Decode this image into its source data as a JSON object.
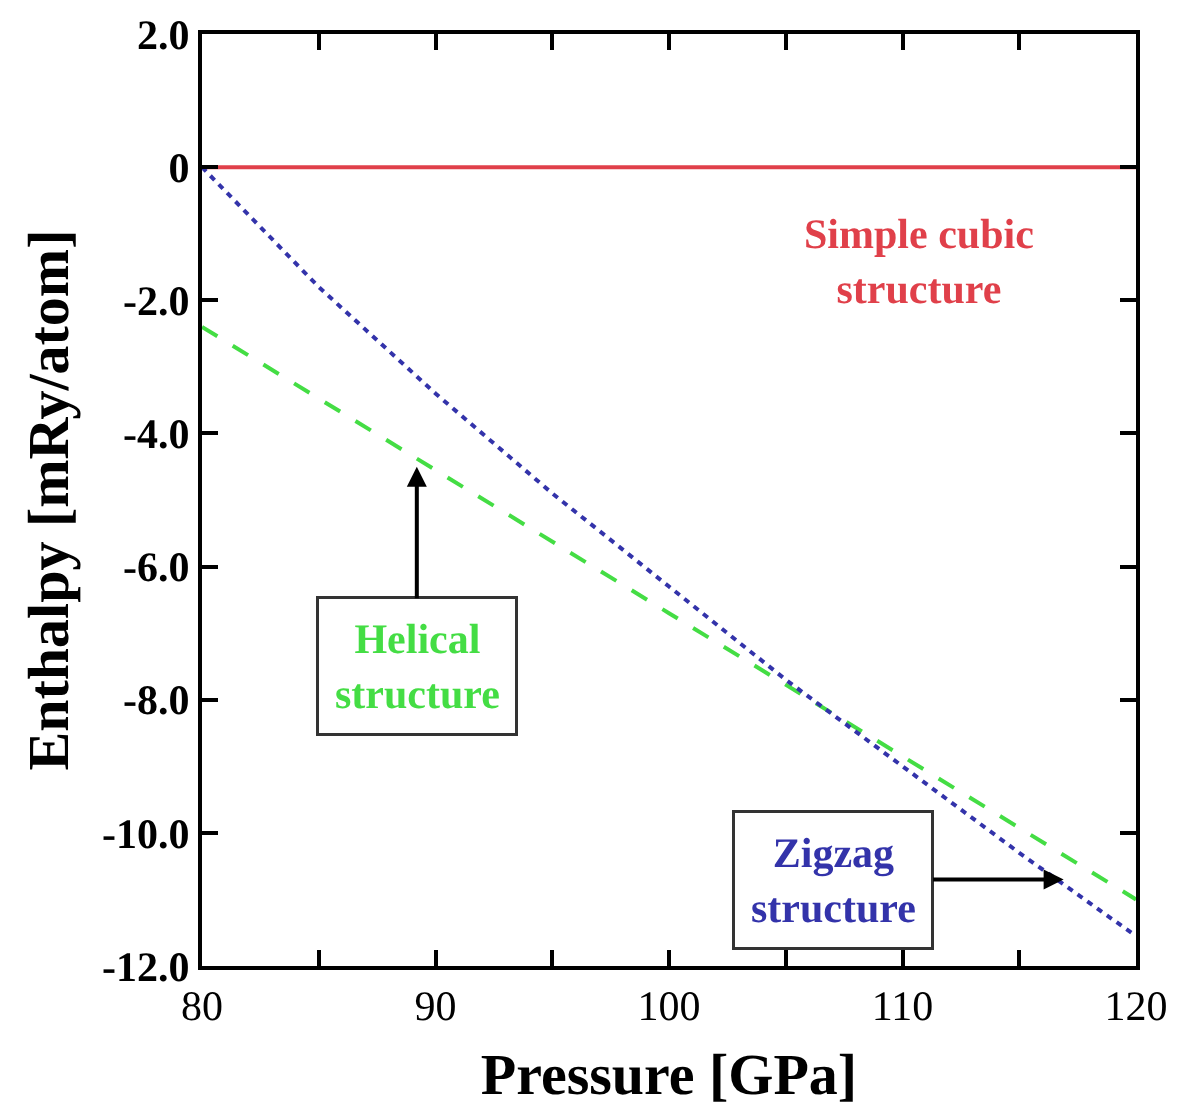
{
  "chart_data": {
    "type": "line",
    "xlabel": "Pressure [GPa]",
    "ylabel": "Enthalpy [mRy/atom]",
    "xlim": [
      80,
      120
    ],
    "ylim": [
      -12,
      2
    ],
    "xticks": [
      80,
      {
        "value": 85,
        "label": null
      },
      90,
      {
        "value": 95,
        "label": null
      },
      100,
      {
        "value": 105,
        "label": null
      },
      110,
      {
        "value": 115,
        "label": null
      },
      120
    ],
    "yticks": [
      {
        "value": -12,
        "label": "-12.0"
      },
      {
        "value": -10,
        "label": "-10.0"
      },
      {
        "value": -8,
        "label": "-8.0"
      },
      {
        "value": -6,
        "label": "-6.0"
      },
      {
        "value": -4,
        "label": "-4.0"
      },
      {
        "value": -2,
        "label": "-2.0"
      },
      0,
      {
        "value": 2,
        "label": "2.0"
      }
    ],
    "grid": false,
    "marker": "none",
    "series": [
      {
        "color": "#e0404a",
        "line_style": "solid",
        "x": [
          80,
          120
        ],
        "values": [
          0,
          0
        ]
      },
      {
        "color": "#44dd44",
        "line_style": "dashed",
        "x": [
          80,
          90,
          100,
          110,
          120
        ],
        "values": [
          -2.4,
          -4.55,
          -6.7,
          -8.85,
          -11.0
        ]
      },
      {
        "color": "#3333aa",
        "line_style": "dotted",
        "x": [
          80,
          85,
          90,
          95,
          100,
          105,
          110,
          115,
          120
        ],
        "values": [
          0,
          -1.8,
          -3.4,
          -4.9,
          -6.3,
          -7.7,
          -9.0,
          -10.3,
          -11.55
        ]
      }
    ],
    "annotations": [
      {
        "text": "Simple cubic\nstructure",
        "x": 110.7,
        "y": 0
      },
      {
        "text": "Helical\nstructure",
        "x": 89.2,
        "y": -4.5
      },
      {
        "text": "Zigzag\nstructure",
        "x": 116.9,
        "y": -10.7
      }
    ]
  }
}
